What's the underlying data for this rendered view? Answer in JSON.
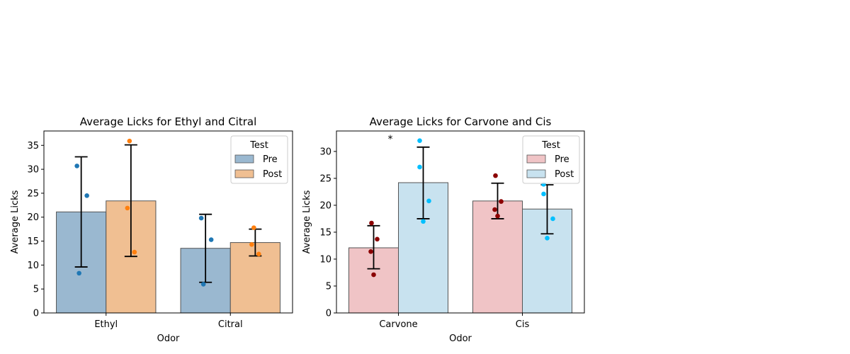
{
  "chart_data": [
    {
      "type": "bar",
      "title": "Average Licks for Ethyl and Citral",
      "xlabel": "Odor",
      "ylabel": "Average Licks",
      "ylim": [
        0,
        38
      ],
      "yticks": [
        0,
        5,
        10,
        15,
        20,
        25,
        30,
        35
      ],
      "categories": [
        "Ethyl",
        "Citral"
      ],
      "legend": {
        "title": "Test",
        "placement": "top-right"
      },
      "series": [
        {
          "name": "Pre",
          "bar_color": "#9ab8d0",
          "point_color": "#1f77b4",
          "values": [
            21.1,
            13.5
          ],
          "error_bars": [
            [
              9.6,
              32.6
            ],
            [
              6.4,
              20.6
            ]
          ],
          "points": [
            [
              30.7,
              24.5,
              8.3
            ],
            [
              19.8,
              15.3,
              6.0
            ]
          ]
        },
        {
          "name": "Post",
          "bar_color": "#f0bf92",
          "point_color": "#ff7f0e",
          "values": [
            23.4,
            14.7
          ],
          "error_bars": [
            [
              11.8,
              35.1
            ],
            [
              11.9,
              17.5
            ]
          ],
          "points": [
            [
              35.9,
              21.9,
              12.7
            ],
            [
              17.8,
              14.3,
              12.3
            ]
          ]
        }
      ],
      "annotations": []
    },
    {
      "type": "bar",
      "title": "Average Licks for Carvone and Cis",
      "xlabel": "Odor",
      "ylabel": "Average Licks",
      "ylim": [
        0,
        33.8
      ],
      "yticks": [
        0,
        5,
        10,
        15,
        20,
        25,
        30
      ],
      "categories": [
        "Carvone",
        "Cis"
      ],
      "legend": {
        "title": "Test",
        "placement": "top-right"
      },
      "series": [
        {
          "name": "Pre",
          "bar_color": "#f0c4c6",
          "point_color": "#8b0000",
          "values": [
            12.1,
            20.8
          ],
          "error_bars": [
            [
              8.2,
              16.2
            ],
            [
              17.5,
              24.1
            ]
          ],
          "points": [
            [
              16.7,
              13.7,
              11.4,
              7.1
            ],
            [
              25.5,
              20.7,
              19.2,
              18.0
            ]
          ]
        },
        {
          "name": "Post",
          "bar_color": "#c8e2ef",
          "point_color": "#00bfff",
          "values": [
            24.2,
            19.3
          ],
          "error_bars": [
            [
              17.5,
              30.8
            ],
            [
              14.7,
              23.8
            ]
          ],
          "points": [
            [
              32.0,
              27.1,
              20.8,
              17.0
            ],
            [
              23.9,
              22.1,
              17.5,
              13.9
            ]
          ]
        }
      ],
      "annotations": [
        "*"
      ]
    }
  ]
}
